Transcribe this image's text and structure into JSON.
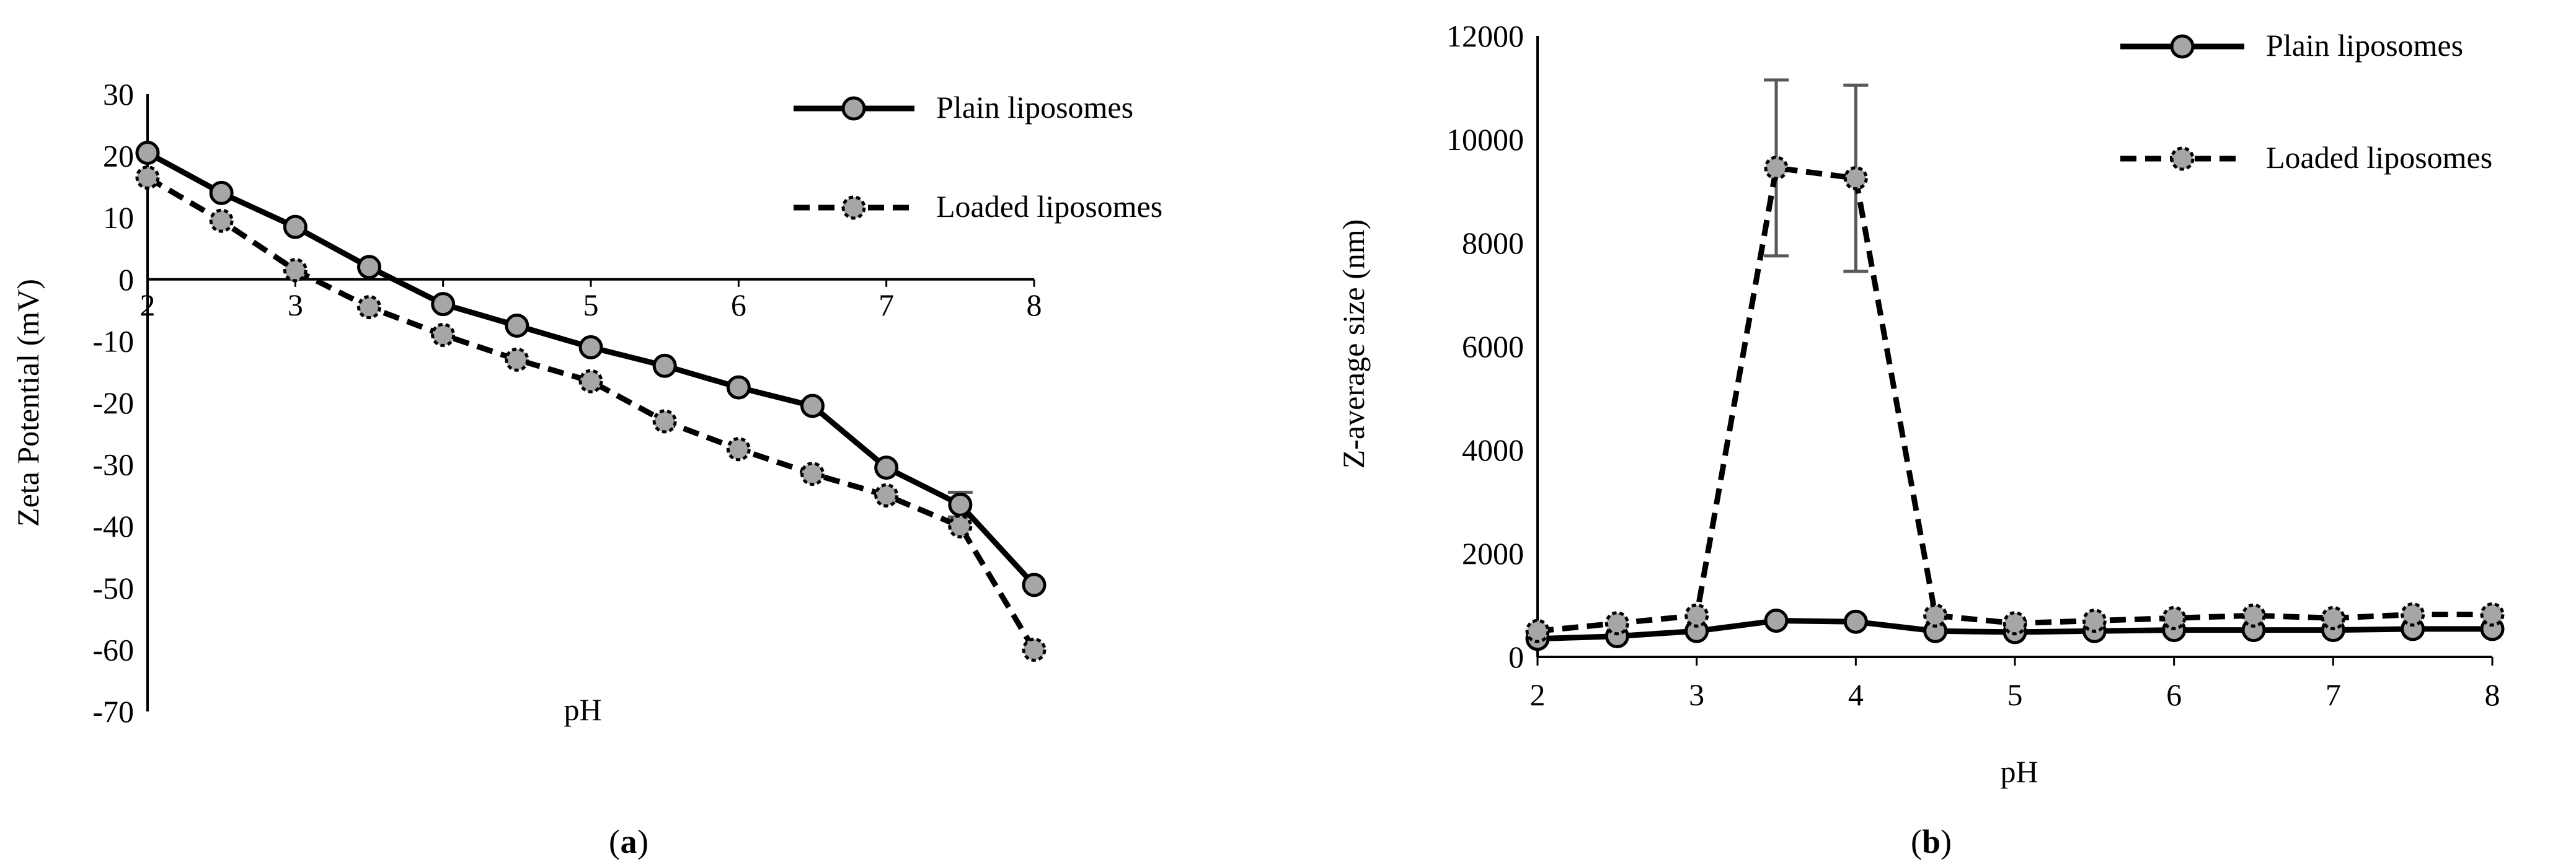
{
  "chart_data": [
    {
      "panel_label": "a",
      "type": "line",
      "xlabel": "pH",
      "ylabel": "Zeta Potential (mV)",
      "ylim": [
        -70,
        30
      ],
      "xlim": [
        2,
        8
      ],
      "x_ticks": [
        "2",
        "3",
        "4",
        "5",
        "6",
        "7",
        "8"
      ],
      "y_ticks": [
        "30",
        "20",
        "10",
        "0",
        "-10",
        "-20",
        "-30",
        "-40",
        "-50",
        "-60",
        "-70"
      ],
      "x_axis_at_y": 0,
      "grid": false,
      "legend_position": "top-right",
      "series": [
        {
          "name": "Plain liposomes",
          "style": "solid",
          "x": [
            2,
            2.5,
            3,
            3.5,
            4,
            4.5,
            5,
            5.5,
            6,
            6.5,
            7,
            7.5,
            8
          ],
          "values": [
            20.5,
            14,
            8.5,
            2,
            -4,
            -7.5,
            -11,
            -14,
            -17.5,
            -20.5,
            -30.5,
            -36.5,
            -49.5
          ],
          "error": [
            0,
            0,
            0,
            0,
            0,
            0,
            0,
            0,
            0,
            0,
            0,
            2,
            0
          ]
        },
        {
          "name": "Loaded liposomes",
          "style": "dashed",
          "x": [
            2,
            2.5,
            3,
            3.5,
            4,
            4.5,
            5,
            5.5,
            6,
            6.5,
            7,
            7.5,
            8
          ],
          "values": [
            16.5,
            9.5,
            1.5,
            -4.5,
            -9,
            -13,
            -16.5,
            -23,
            -27.5,
            -31.5,
            -35,
            -40,
            -60
          ],
          "error": [
            0,
            0,
            0,
            0,
            0,
            0,
            0,
            0,
            0,
            0,
            0,
            0,
            0
          ]
        }
      ]
    },
    {
      "panel_label": "b",
      "type": "line",
      "xlabel": "pH",
      "ylabel": "Z-average size (nm)",
      "ylim": [
        0,
        12000
      ],
      "xlim": [
        2,
        8
      ],
      "x_ticks": [
        "2",
        "3",
        "4",
        "5",
        "6",
        "7",
        "8"
      ],
      "y_ticks": [
        "0",
        "2000",
        "4000",
        "6000",
        "8000",
        "10000",
        "12000"
      ],
      "grid": false,
      "legend_position": "top-right",
      "series": [
        {
          "name": "Plain liposomes",
          "style": "solid",
          "x": [
            2,
            2.5,
            3,
            3.5,
            4,
            4.5,
            5,
            5.5,
            6,
            6.5,
            7,
            7.5,
            8
          ],
          "values": [
            350,
            400,
            500,
            700,
            680,
            500,
            480,
            500,
            520,
            520,
            520,
            540,
            540
          ],
          "error": [
            0,
            0,
            0,
            0,
            0,
            0,
            0,
            0,
            0,
            0,
            0,
            0,
            0
          ]
        },
        {
          "name": "Loaded liposomes",
          "style": "dashed",
          "x": [
            2,
            2.5,
            3,
            3.5,
            4,
            4.5,
            5,
            5.5,
            6,
            6.5,
            7,
            7.5,
            8
          ],
          "values": [
            500,
            650,
            800,
            9450,
            9250,
            800,
            650,
            700,
            750,
            800,
            750,
            820,
            820
          ],
          "error": [
            0,
            0,
            0,
            1700,
            1800,
            0,
            0,
            0,
            0,
            0,
            0,
            0,
            0
          ]
        }
      ]
    }
  ]
}
